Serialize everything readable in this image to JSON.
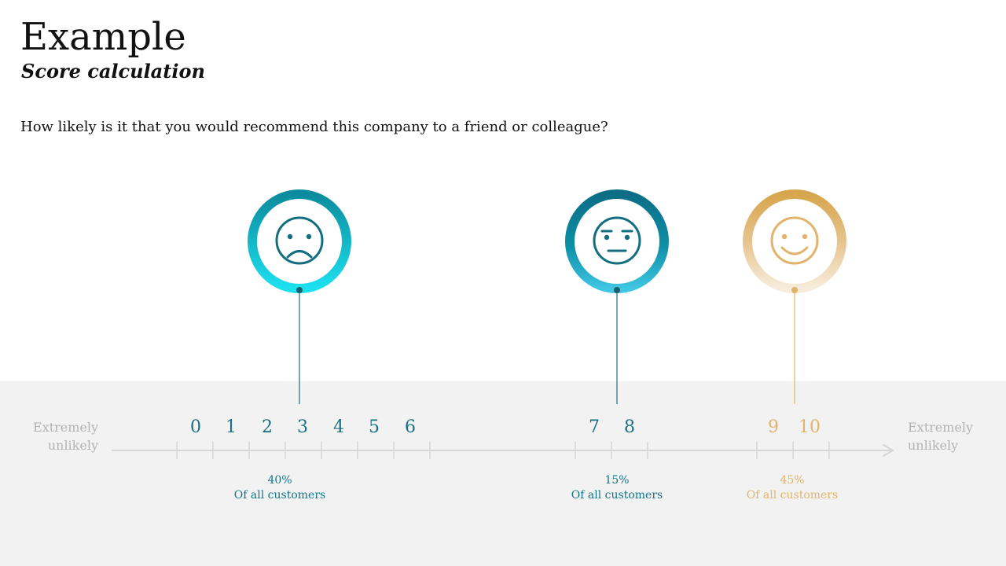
{
  "header": {
    "title": "Example",
    "subtitle": "Score calculation"
  },
  "question": "How likely is it that you would recommend this company to a friend or colleague?",
  "scale": {
    "left_label_line1": "Extremely",
    "left_label_line2": "unlikely",
    "right_label_line1": "Extremely",
    "right_label_line2": "unlikely"
  },
  "scores": [
    "0",
    "1",
    "2",
    "3",
    "4",
    "5",
    "6",
    "7",
    "8",
    "9",
    "10"
  ],
  "groups": {
    "detractors": {
      "percent": "40%",
      "caption": "Of all customers",
      "face": "sad-face-icon",
      "color": "#11a3b8"
    },
    "passives": {
      "percent": "15%",
      "caption": "Of all customers",
      "face": "neutral-face-icon",
      "color": "#0e7790"
    },
    "promoters": {
      "percent": "45%",
      "caption": "Of all customers",
      "face": "smile-face-icon",
      "color": "#e2b36a"
    }
  }
}
